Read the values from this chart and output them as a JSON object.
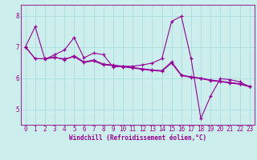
{
  "xlabel": "Windchill (Refroidissement éolien,°C)",
  "bg_color": "#cceeed",
  "grid_color": "#aadddd",
  "line_color": "#990099",
  "spine_color": "#993399",
  "xlim": [
    -0.5,
    23.5
  ],
  "ylim": [
    4.5,
    8.35
  ],
  "xticks": [
    0,
    1,
    2,
    3,
    4,
    5,
    6,
    7,
    8,
    9,
    10,
    11,
    12,
    13,
    14,
    15,
    16,
    17,
    18,
    19,
    20,
    21,
    22,
    23
  ],
  "yticks": [
    5,
    6,
    7,
    8
  ],
  "series1_x": [
    0,
    1,
    2,
    3,
    4,
    5,
    6,
    7,
    8,
    9,
    10,
    11,
    12,
    13,
    14,
    15,
    16,
    17,
    18,
    19,
    20,
    21,
    22,
    23
  ],
  "series1_y": [
    7.0,
    7.65,
    6.6,
    6.75,
    6.9,
    7.3,
    6.65,
    6.8,
    6.75,
    6.35,
    6.38,
    6.38,
    6.42,
    6.48,
    6.62,
    7.82,
    7.98,
    6.62,
    4.7,
    5.42,
    5.98,
    5.95,
    5.88,
    5.72
  ],
  "series2_x": [
    0,
    1,
    2,
    3,
    4,
    5,
    6,
    7,
    8,
    9,
    10,
    11,
    12,
    13,
    14,
    15,
    16,
    17,
    18,
    19,
    20,
    21,
    22,
    23
  ],
  "series2_y": [
    7.0,
    6.62,
    6.62,
    6.65,
    6.62,
    6.68,
    6.5,
    6.55,
    6.42,
    6.4,
    6.36,
    6.32,
    6.28,
    6.24,
    6.22,
    6.48,
    6.08,
    6.02,
    5.98,
    5.92,
    5.88,
    5.84,
    5.8,
    5.72
  ],
  "series3_x": [
    0,
    1,
    2,
    3,
    4,
    5,
    6,
    7,
    8,
    9,
    10,
    11,
    12,
    13,
    14,
    15,
    16,
    17,
    18,
    19,
    20,
    21,
    22,
    23
  ],
  "series3_y": [
    7.0,
    6.62,
    6.62,
    6.68,
    6.58,
    6.72,
    6.52,
    6.58,
    6.45,
    6.42,
    6.38,
    6.34,
    6.3,
    6.26,
    6.24,
    6.52,
    6.1,
    6.04,
    6.0,
    5.94,
    5.9,
    5.86,
    5.82,
    5.74
  ],
  "xlabel_fontsize": 5.5,
  "tick_fontsize": 5.5,
  "linewidth": 0.8,
  "markersize": 2.5
}
